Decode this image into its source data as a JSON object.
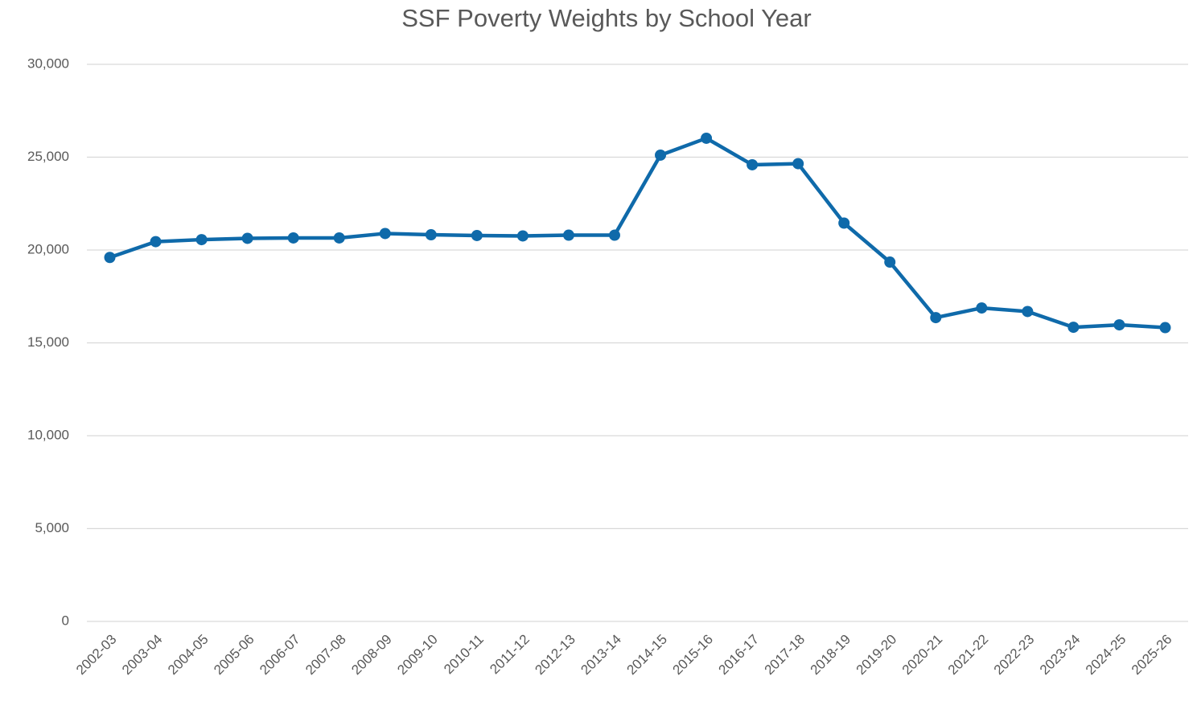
{
  "chart_data": {
    "type": "line",
    "title": "SSF Poverty Weights by School Year",
    "categories": [
      "2002-03",
      "2003-04",
      "2004-05",
      "2005-06",
      "2006-07",
      "2007-08",
      "2008-09",
      "2009-10",
      "2010-11",
      "2011-12",
      "2012-13",
      "2013-14",
      "2014-15",
      "2015-16",
      "2016-17",
      "2017-18",
      "2018-19",
      "2019-20",
      "2020-21",
      "2021-22",
      "2022-23",
      "2023-24",
      "2024-25",
      "2025-26"
    ],
    "values": [
      19600,
      20450,
      20560,
      20630,
      20650,
      20650,
      20890,
      20820,
      20780,
      20760,
      20800,
      20800,
      25110,
      26020,
      24590,
      24650,
      21450,
      19350,
      16360,
      16880,
      16690,
      15840,
      15970,
      15820
    ],
    "color": "#0f6aaa",
    "ylim": [
      0,
      30000
    ],
    "yticks": [
      0,
      {
        "value": 5000,
        "label": "5,000"
      },
      {
        "value": 10000,
        "label": "10,000"
      },
      {
        "value": 15000,
        "label": "15,000"
      },
      {
        "value": 20000,
        "label": "20,000"
      },
      {
        "value": 25000,
        "label": "25,000"
      },
      {
        "value": 30000,
        "label": "30,000"
      }
    ],
    "grid": true
  }
}
